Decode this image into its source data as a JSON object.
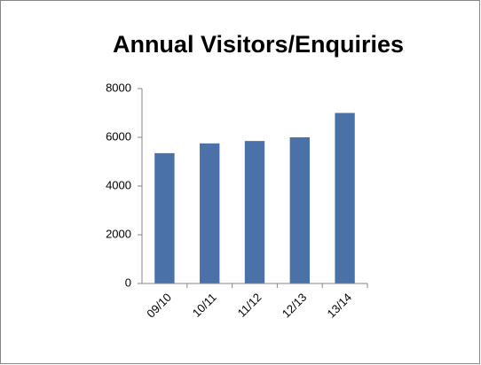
{
  "chart_data": {
    "type": "bar",
    "title": "Annual Visitors/Enquiries",
    "categories": [
      "09/10",
      "10/11",
      "11/12",
      "12/13",
      "13/14"
    ],
    "values": [
      5350,
      5750,
      5850,
      6000,
      7000
    ],
    "color": "#4a72a8",
    "ylim": [
      0,
      8000
    ],
    "yticks": [
      0,
      2000,
      4000,
      6000,
      8000
    ],
    "grid": false
  }
}
